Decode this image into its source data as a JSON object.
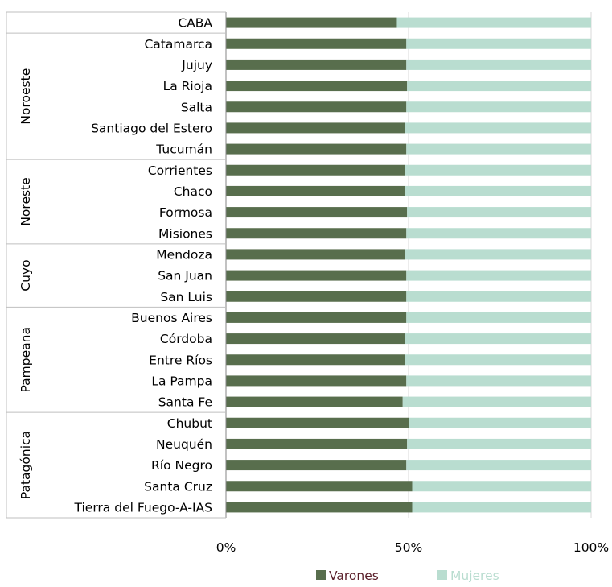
{
  "chart_data": {
    "type": "bar",
    "orientation": "horizontal",
    "stacked": "percent",
    "groups": [
      {
        "name": "",
        "categories": [
          "CABA"
        ]
      },
      {
        "name": "Noroeste",
        "categories": [
          "Catamarca",
          "Jujuy",
          "La Rioja",
          "Salta",
          "Santiago del Estero",
          "Tucumán"
        ]
      },
      {
        "name": "Noreste",
        "categories": [
          "Corrientes",
          "Chaco",
          "Formosa",
          "Misiones"
        ]
      },
      {
        "name": "Cuyo",
        "categories": [
          "Mendoza",
          "San Juan",
          "San Luis"
        ]
      },
      {
        "name": "Pampeana",
        "categories": [
          "Buenos Aires",
          "Córdoba",
          "Entre Ríos",
          "La Pampa",
          "Santa Fe"
        ]
      },
      {
        "name": "Patagónica",
        "categories": [
          "Chubut",
          "Neuquén",
          "Río Negro",
          "Santa Cruz",
          "Tierra del Fuego-A-IAS"
        ]
      }
    ],
    "categories": [
      "CABA",
      "Catamarca",
      "Jujuy",
      "La Rioja",
      "Salta",
      "Santiago del Estero",
      "Tucumán",
      "Corrientes",
      "Chaco",
      "Formosa",
      "Misiones",
      "Mendoza",
      "San Juan",
      "San Luis",
      "Buenos Aires",
      "Córdoba",
      "Entre Ríos",
      "La Pampa",
      "Santa Fe",
      "Chubut",
      "Neuquén",
      "Río Negro",
      "Santa Cruz",
      "Tierra del Fuego-A-IAS"
    ],
    "series": [
      {
        "name": "Varones",
        "color": "#586e4d",
        "values": [
          46.8,
          49.4,
          49.4,
          49.6,
          49.4,
          48.9,
          49.4,
          48.9,
          48.9,
          49.6,
          49.4,
          48.9,
          49.4,
          49.4,
          49.4,
          48.9,
          48.9,
          49.4,
          48.4,
          50.0,
          49.6,
          49.4,
          51.0,
          51.0
        ]
      },
      {
        "name": "Mujeres",
        "color": "#b9ddd0",
        "values": [
          53.2,
          50.6,
          50.6,
          50.4,
          50.6,
          51.1,
          50.6,
          51.1,
          51.1,
          50.4,
          50.6,
          51.1,
          50.6,
          50.6,
          50.6,
          51.1,
          51.1,
          50.6,
          51.6,
          50.0,
          50.4,
          50.6,
          49.0,
          49.0
        ]
      }
    ],
    "xlim": [
      0,
      100
    ],
    "xticks": [
      "0%",
      "50%",
      "100%"
    ],
    "grid": true,
    "legend": "bottom",
    "legend_text_colors": [
      "#5a1f2a",
      "#b9ddd0"
    ],
    "title": "",
    "xlabel": "",
    "ylabel": ""
  }
}
